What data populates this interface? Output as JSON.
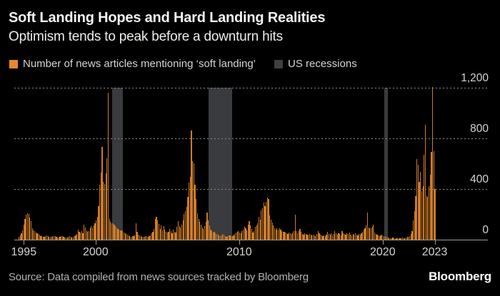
{
  "header": {
    "title": "Soft Landing Hopes and Hard Landing Realities",
    "subtitle": "Optimism tends to peak before a downturn hits"
  },
  "legend": {
    "items": [
      {
        "label": "Number of news articles mentioning ‘soft landing’",
        "color": "#e8872d"
      },
      {
        "label": "US recessions",
        "color": "#3f4043"
      }
    ]
  },
  "chart_data": {
    "type": "bar",
    "title": "Soft Landing Hopes and Hard Landing Realities",
    "subtitle": "Optimism tends to peak before a downturn hits",
    "series_name": "Number of news articles mentioning ‘soft landing’",
    "frequency": "monthly",
    "start": "1994-09",
    "end": "2023-06",
    "values": [
      25,
      35,
      50,
      75,
      120,
      165,
      198,
      211,
      205,
      174,
      146,
      90,
      75,
      65,
      58,
      50,
      45,
      38,
      30,
      26,
      24,
      20,
      26,
      33,
      28,
      24,
      20,
      22,
      26,
      30,
      27,
      22,
      18,
      20,
      24,
      29,
      26,
      21,
      18,
      15,
      18,
      22,
      26,
      21,
      17,
      22,
      28,
      35,
      45,
      80,
      62,
      55,
      66,
      52,
      118,
      95,
      76,
      64,
      70,
      88,
      108,
      98,
      112,
      128,
      150,
      182,
      266,
      433,
      530,
      735,
      456,
      440,
      526,
      640,
      1160,
      163,
      140,
      128,
      131,
      118,
      108,
      96,
      86,
      81,
      72,
      76,
      66,
      56,
      50,
      45,
      40,
      34,
      30,
      25,
      30,
      28,
      36,
      131,
      62,
      42,
      32,
      26,
      22,
      20,
      25,
      30,
      28,
      22,
      26,
      36,
      52,
      62,
      85,
      163,
      182,
      150,
      122,
      86,
      115,
      72,
      105,
      78,
      62,
      56,
      60,
      85,
      70,
      52,
      78,
      62,
      56,
      100,
      145,
      105,
      98,
      120,
      150,
      201,
      228,
      257,
      340,
      452,
      498,
      861,
      619,
      601,
      433,
      322,
      210,
      163,
      140,
      120,
      96,
      85,
      105,
      140,
      214,
      150,
      110,
      80,
      65,
      56,
      60,
      50,
      44,
      40,
      35,
      30,
      36,
      46,
      40,
      30,
      25,
      28,
      32,
      36,
      30,
      28,
      36,
      45,
      55,
      60,
      70,
      55,
      50,
      65,
      80,
      104,
      90,
      75,
      120,
      149,
      115,
      85,
      59,
      70,
      100,
      110,
      130,
      182,
      160,
      229,
      250,
      294,
      266,
      300,
      335,
      322,
      191,
      160,
      136,
      110,
      90,
      78,
      90,
      80,
      90,
      78,
      65,
      60,
      60,
      55,
      50,
      46,
      55,
      50,
      45,
      55,
      65,
      198,
      70,
      50,
      68,
      85,
      60,
      46,
      40,
      50,
      45,
      40,
      34,
      45,
      40,
      35,
      40,
      35,
      30,
      45,
      68,
      50,
      40,
      35,
      30,
      36,
      30,
      40,
      60,
      45,
      40,
      50,
      35,
      46,
      68,
      50,
      40,
      50,
      45,
      35,
      68,
      50,
      45,
      40,
      50,
      45,
      55,
      40,
      34,
      45,
      40,
      50,
      40,
      35,
      45,
      40,
      50,
      60,
      80,
      92,
      110,
      214,
      97,
      90,
      90,
      100,
      121,
      56,
      46,
      40,
      35,
      30,
      36,
      40,
      30,
      28,
      25,
      20,
      15,
      12,
      10,
      12,
      15,
      10,
      8,
      10,
      12,
      10,
      12,
      10,
      15,
      12,
      10,
      15,
      20,
      25,
      30,
      45,
      70,
      150,
      224,
      346,
      636,
      589,
      458,
      533,
      383,
      421,
      673,
      907,
      346,
      337,
      421,
      514,
      692,
      1205,
      701,
      402
    ],
    "y_axis": {
      "max": 1200,
      "gridlines": "dotted",
      "ticks": [
        {
          "value": 0,
          "label": "0"
        },
        {
          "value": 400,
          "label": "400"
        },
        {
          "value": 800,
          "label": "800"
        },
        {
          "value": 1200,
          "label": "1,200"
        }
      ]
    },
    "x_axis": {
      "ticks": [
        {
          "label": "1995",
          "pos": 1995
        },
        {
          "label": "2000",
          "pos": 2000
        },
        {
          "label": "2010",
          "pos": 2010
        },
        {
          "label": "2020",
          "pos": 2020
        },
        {
          "label": "2023",
          "pos": 2023.62
        }
      ]
    },
    "recessions": {
      "label": "US recessions",
      "bands": [
        {
          "from": 2001.17,
          "to": 2001.92
        },
        {
          "from": 2007.88,
          "to": 2009.5
        },
        {
          "from": 2020.12,
          "to": 2020.37
        }
      ]
    },
    "colors": {
      "bars": "#ce7c28",
      "recession_band": "#3a3b3e",
      "background": "#000000"
    }
  },
  "footer": {
    "source": "Source: Data compiled from news sources tracked by Bloomberg",
    "logo": "Bloomberg"
  }
}
